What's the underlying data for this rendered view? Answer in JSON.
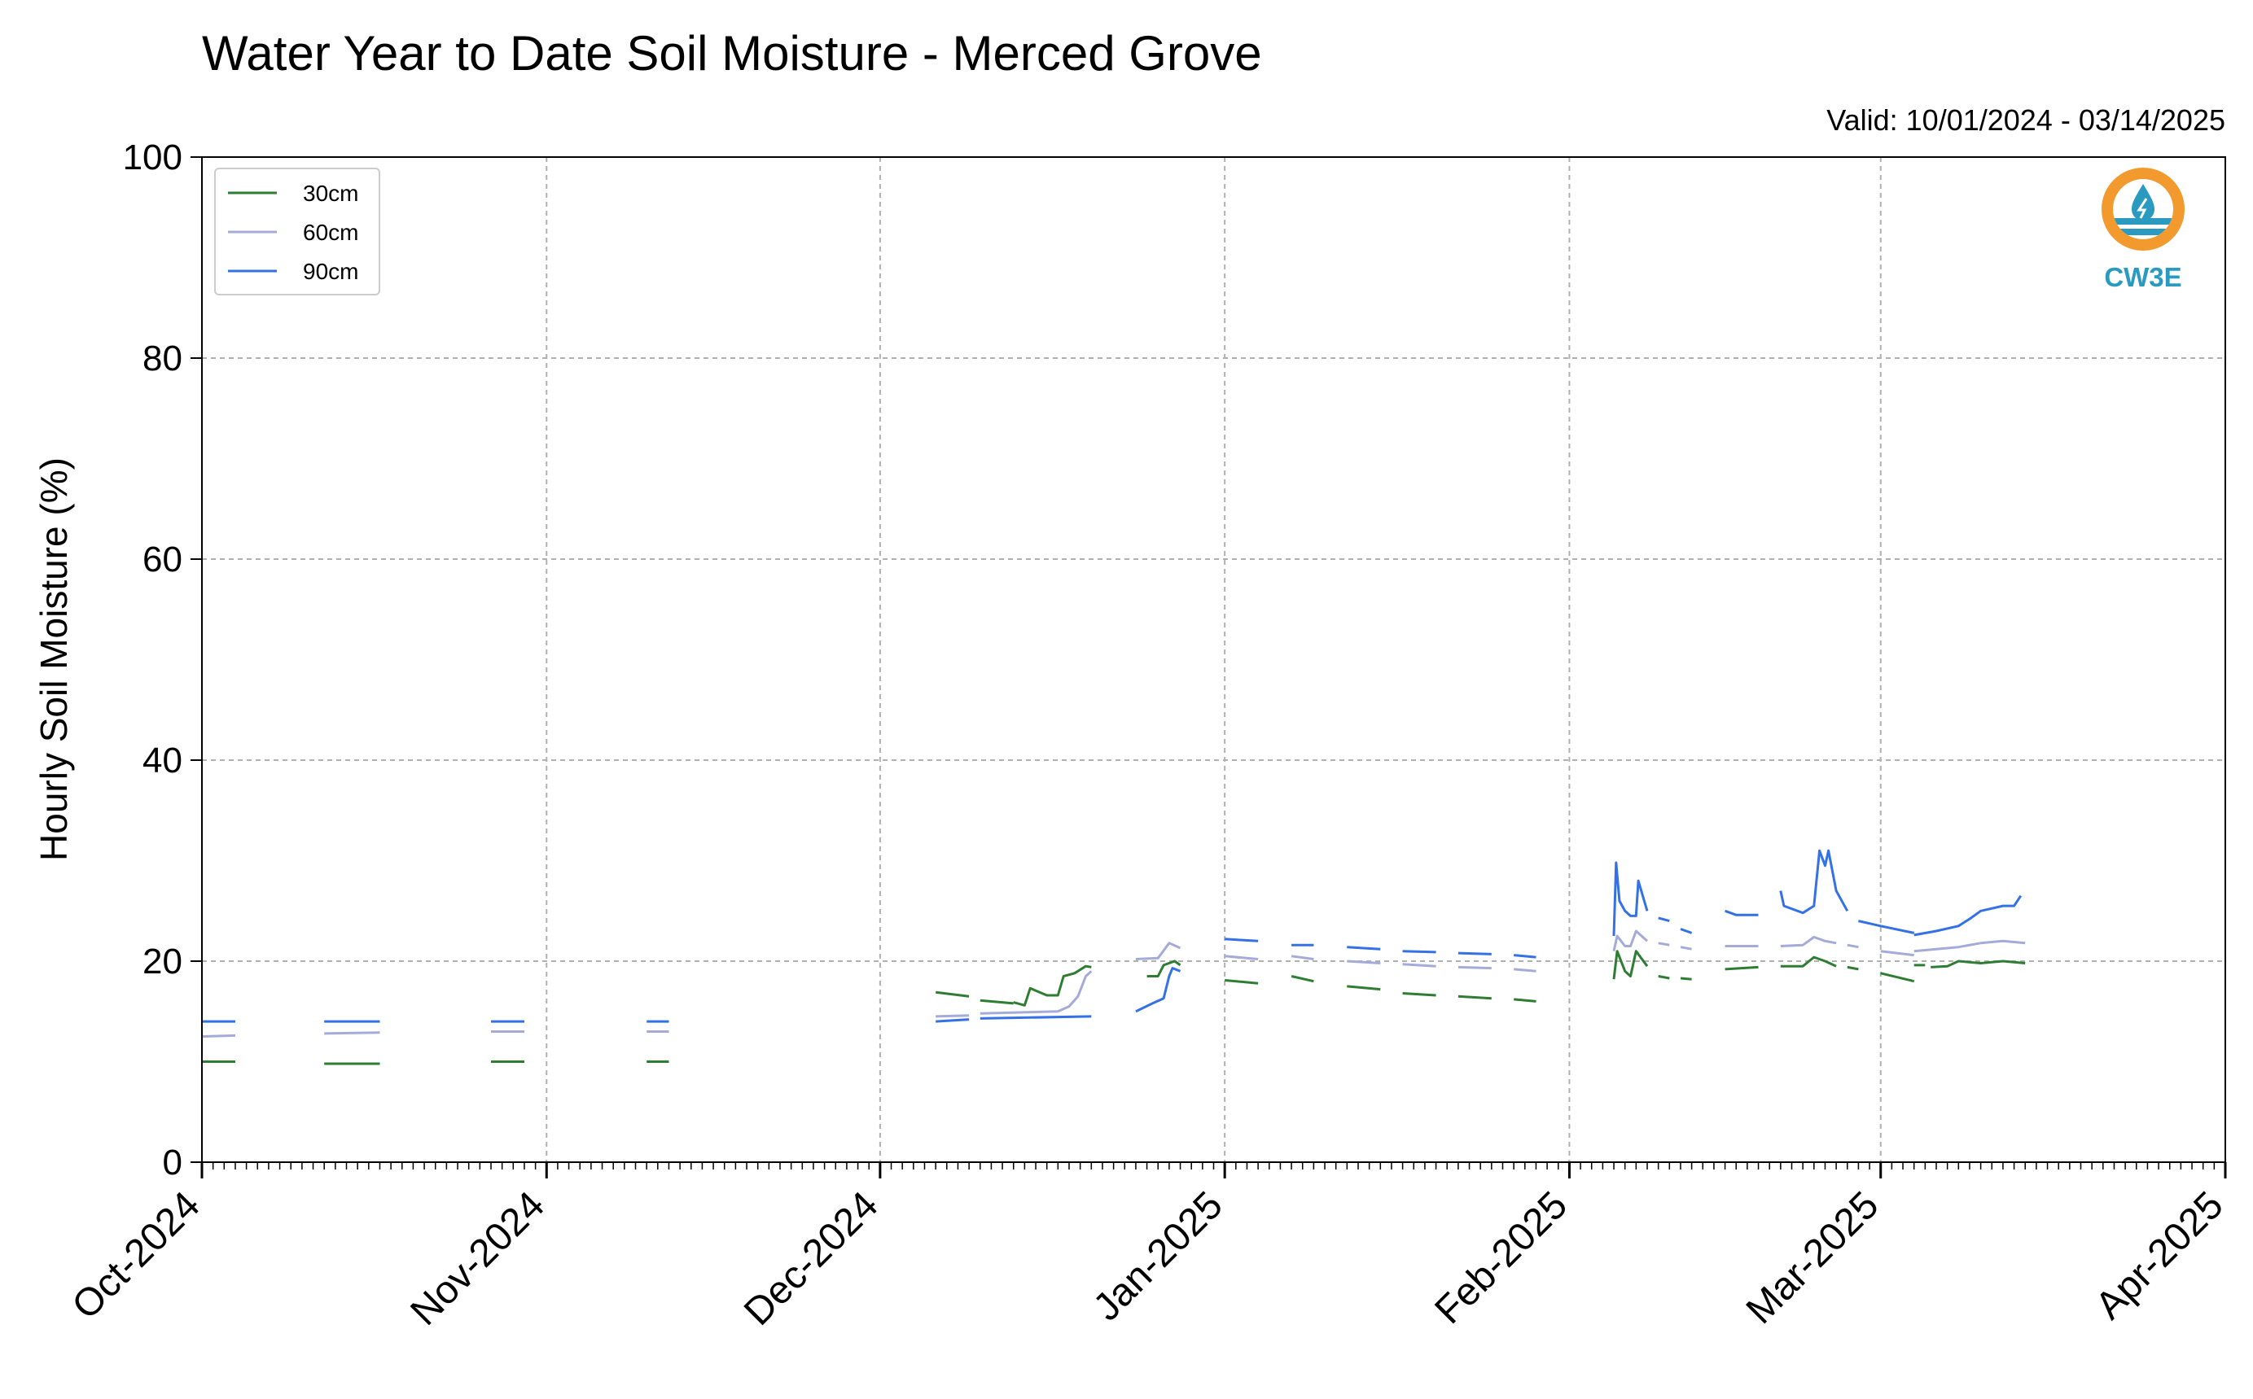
{
  "chart_data": {
    "type": "line",
    "title": "Water Year to Date Soil Moisture - Merced Grove",
    "subtitle": "Valid: 10/01/2024 - 03/14/2025",
    "xlabel": "",
    "ylabel": "Hourly Soil Moisture (%)",
    "ylim": [
      0,
      100
    ],
    "yticks": [
      0,
      20,
      40,
      60,
      80,
      100
    ],
    "xlim": [
      "2024-10-01",
      "2025-04-01"
    ],
    "xticks": [
      {
        "date": "2024-10-01",
        "label": "Oct-2024"
      },
      {
        "date": "2024-11-01",
        "label": "Nov-2024"
      },
      {
        "date": "2024-12-01",
        "label": "Dec-2024"
      },
      {
        "date": "2025-01-01",
        "label": "Jan-2025"
      },
      {
        "date": "2025-02-01",
        "label": "Feb-2025"
      },
      {
        "date": "2025-03-01",
        "label": "Mar-2025"
      },
      {
        "date": "2025-04-01",
        "label": "Apr-2025"
      }
    ],
    "grid": true,
    "legend_position": "top-left",
    "series": [
      {
        "name": "30cm",
        "color": "#2e7d32",
        "segments": [
          [
            [
              "2024-10-01",
              10.0
            ],
            [
              "2024-10-04",
              10.0
            ]
          ],
          [
            [
              "2024-10-12",
              9.8
            ],
            [
              "2024-10-17",
              9.8
            ]
          ],
          [
            [
              "2024-10-27",
              10.0
            ],
            [
              "2024-10-30",
              10.0
            ]
          ],
          [
            [
              "2024-11-10",
              10.0
            ],
            [
              "2024-11-12",
              10.0
            ]
          ],
          [
            [
              "2024-12-06",
              16.9
            ],
            [
              "2024-12-09",
              16.5
            ]
          ],
          [
            [
              "2024-12-10",
              16.1
            ],
            [
              "2024-12-13",
              15.8
            ]
          ],
          [
            [
              "2024-12-13",
              15.9
            ],
            [
              "2024-12-14",
              15.6
            ],
            [
              "2024-12-14.5",
              17.3
            ],
            [
              "2024-12-16",
              16.6
            ],
            [
              "2024-12-17",
              16.6
            ],
            [
              "2024-12-17.5",
              18.5
            ],
            [
              "2024-12-18.5",
              18.8
            ],
            [
              "2024-12-19.5",
              19.5
            ],
            [
              "2024-12-20",
              19.4
            ]
          ],
          [
            [
              "2024-12-25",
              18.5
            ],
            [
              "2024-12-26",
              18.5
            ],
            [
              "2024-12-26.5",
              19.6
            ],
            [
              "2024-12-27.5",
              20.0
            ],
            [
              "2024-12-28",
              19.6
            ]
          ],
          [
            [
              "2025-01-01",
              18.1
            ],
            [
              "2025-01-04",
              17.8
            ]
          ],
          [
            [
              "2025-01-07",
              18.5
            ],
            [
              "2025-01-09",
              18.0
            ]
          ],
          [
            [
              "2025-01-12",
              17.5
            ],
            [
              "2025-01-15",
              17.2
            ]
          ],
          [
            [
              "2025-01-17",
              16.8
            ],
            [
              "2025-01-20",
              16.6
            ]
          ],
          [
            [
              "2025-01-22",
              16.5
            ],
            [
              "2025-01-25",
              16.3
            ]
          ],
          [
            [
              "2025-01-27",
              16.2
            ],
            [
              "2025-01-29",
              16.0
            ]
          ],
          [
            [
              "2025-02-05",
              18.2
            ],
            [
              "2025-02-05.3",
              21.0
            ],
            [
              "2025-02-06",
              19.0
            ],
            [
              "2025-02-06.5",
              18.5
            ],
            [
              "2025-02-07",
              21.0
            ],
            [
              "2025-02-08",
              19.5
            ]
          ],
          [
            [
              "2025-02-09",
              18.5
            ],
            [
              "2025-02-10",
              18.3
            ]
          ],
          [
            [
              "2025-02-11",
              18.3
            ],
            [
              "2025-02-12",
              18.2
            ]
          ],
          [
            [
              "2025-02-15",
              19.2
            ],
            [
              "2025-02-18",
              19.4
            ]
          ],
          [
            [
              "2025-02-20",
              19.5
            ],
            [
              "2025-02-22",
              19.5
            ],
            [
              "2025-02-23",
              20.4
            ],
            [
              "2025-02-24",
              20.0
            ],
            [
              "2025-02-25",
              19.5
            ]
          ],
          [
            [
              "2025-02-26",
              19.4
            ],
            [
              "2025-02-27",
              19.2
            ]
          ],
          [
            [
              "2025-03-01",
              18.8
            ],
            [
              "2025-03-04",
              18.0
            ]
          ],
          [
            [
              "2025-03-04",
              19.6
            ],
            [
              "2025-03-05",
              19.6
            ]
          ],
          [
            [
              "2025-03-05.5",
              19.4
            ],
            [
              "2025-03-07",
              19.5
            ],
            [
              "2025-03-08",
              20.0
            ],
            [
              "2025-03-10",
              19.8
            ],
            [
              "2025-03-12",
              20.0
            ],
            [
              "2025-03-14",
              19.8
            ]
          ]
        ]
      },
      {
        "name": "60cm",
        "color": "#a5abd9",
        "segments": [
          [
            [
              "2024-10-01",
              12.5
            ],
            [
              "2024-10-04",
              12.6
            ]
          ],
          [
            [
              "2024-10-12",
              12.8
            ],
            [
              "2024-10-17",
              12.9
            ]
          ],
          [
            [
              "2024-10-27",
              13.0
            ],
            [
              "2024-10-30",
              13.0
            ]
          ],
          [
            [
              "2024-11-10",
              13.0
            ],
            [
              "2024-11-12",
              13.0
            ]
          ],
          [
            [
              "2024-12-06",
              14.5
            ],
            [
              "2024-12-09",
              14.6
            ]
          ],
          [
            [
              "2024-12-10",
              14.8
            ],
            [
              "2024-12-17",
              15.0
            ],
            [
              "2024-12-18",
              15.5
            ],
            [
              "2024-12-18.8",
              16.5
            ],
            [
              "2024-12-19.5",
              18.5
            ],
            [
              "2024-12-20",
              19.0
            ]
          ],
          [
            [
              "2024-12-24",
              20.2
            ],
            [
              "2024-12-26",
              20.3
            ],
            [
              "2024-12-27",
              21.8
            ],
            [
              "2024-12-28",
              21.3
            ]
          ],
          [
            [
              "2025-01-01",
              20.5
            ],
            [
              "2025-01-04",
              20.2
            ]
          ],
          [
            [
              "2025-01-07",
              20.5
            ],
            [
              "2025-01-09",
              20.2
            ]
          ],
          [
            [
              "2025-01-12",
              20.0
            ],
            [
              "2025-01-15",
              19.8
            ]
          ],
          [
            [
              "2025-01-17",
              19.7
            ],
            [
              "2025-01-20",
              19.5
            ]
          ],
          [
            [
              "2025-01-22",
              19.4
            ],
            [
              "2025-01-25",
              19.3
            ]
          ],
          [
            [
              "2025-01-27",
              19.2
            ],
            [
              "2025-01-29",
              19.0
            ]
          ],
          [
            [
              "2025-02-05",
              21.0
            ],
            [
              "2025-02-05.3",
              22.5
            ],
            [
              "2025-02-06",
              21.5
            ],
            [
              "2025-02-06.5",
              21.5
            ],
            [
              "2025-02-07",
              23.0
            ],
            [
              "2025-02-08",
              22.0
            ]
          ],
          [
            [
              "2025-02-09",
              21.8
            ],
            [
              "2025-02-10",
              21.6
            ]
          ],
          [
            [
              "2025-02-11",
              21.4
            ],
            [
              "2025-02-12",
              21.2
            ]
          ],
          [
            [
              "2025-02-15",
              21.5
            ],
            [
              "2025-02-18",
              21.5
            ]
          ],
          [
            [
              "2025-02-20",
              21.5
            ],
            [
              "2025-02-22",
              21.6
            ],
            [
              "2025-02-23",
              22.4
            ],
            [
              "2025-02-24",
              22.0
            ],
            [
              "2025-02-25",
              21.8
            ]
          ],
          [
            [
              "2025-02-26",
              21.6
            ],
            [
              "2025-02-27",
              21.4
            ]
          ],
          [
            [
              "2025-03-01",
              21.0
            ],
            [
              "2025-03-04",
              20.6
            ]
          ],
          [
            [
              "2025-03-04",
              21.0
            ],
            [
              "2025-03-06",
              21.2
            ],
            [
              "2025-03-08",
              21.4
            ],
            [
              "2025-03-10",
              21.8
            ],
            [
              "2025-03-12",
              22.0
            ],
            [
              "2025-03-14",
              21.8
            ]
          ]
        ]
      },
      {
        "name": "90cm",
        "color": "#3470e6",
        "segments": [
          [
            [
              "2024-10-01",
              14.0
            ],
            [
              "2024-10-04",
              14.0
            ]
          ],
          [
            [
              "2024-10-12",
              14.0
            ],
            [
              "2024-10-17",
              14.0
            ]
          ],
          [
            [
              "2024-10-27",
              14.0
            ],
            [
              "2024-10-30",
              14.0
            ]
          ],
          [
            [
              "2024-11-10",
              14.0
            ],
            [
              "2024-11-12",
              14.0
            ]
          ],
          [
            [
              "2024-12-06",
              14.0
            ],
            [
              "2024-12-09",
              14.2
            ]
          ],
          [
            [
              "2024-12-10",
              14.3
            ],
            [
              "2024-12-20",
              14.5
            ]
          ],
          [
            [
              "2024-12-24",
              15.0
            ],
            [
              "2024-12-25.5",
              15.8
            ],
            [
              "2024-12-26.5",
              16.3
            ],
            [
              "2024-12-27",
              18.5
            ],
            [
              "2024-12-27.3",
              19.3
            ],
            [
              "2024-12-28",
              19.0
            ]
          ],
          [
            [
              "2025-01-01",
              22.2
            ],
            [
              "2025-01-04",
              22.0
            ]
          ],
          [
            [
              "2025-01-07",
              21.6
            ],
            [
              "2025-01-09",
              21.6
            ]
          ],
          [
            [
              "2025-01-12",
              21.4
            ],
            [
              "2025-01-15",
              21.2
            ]
          ],
          [
            [
              "2025-01-17",
              21.0
            ],
            [
              "2025-01-20",
              20.9
            ]
          ],
          [
            [
              "2025-01-22",
              20.8
            ],
            [
              "2025-01-25",
              20.7
            ]
          ],
          [
            [
              "2025-01-27",
              20.6
            ],
            [
              "2025-01-29",
              20.4
            ]
          ],
          [
            [
              "2025-02-05",
              22.5
            ],
            [
              "2025-02-05.2",
              29.8
            ],
            [
              "2025-02-05.5",
              26.0
            ],
            [
              "2025-02-06",
              25.0
            ],
            [
              "2025-02-06.5",
              24.5
            ],
            [
              "2025-02-07",
              24.5
            ],
            [
              "2025-02-07.2",
              28.0
            ],
            [
              "2025-02-07.6",
              26.5
            ],
            [
              "2025-02-08",
              25.0
            ]
          ],
          [
            [
              "2025-02-09",
              24.3
            ],
            [
              "2025-02-10",
              24.0
            ]
          ],
          [
            [
              "2025-02-11",
              23.2
            ],
            [
              "2025-02-12",
              22.8
            ]
          ],
          [
            [
              "2025-02-15",
              25.0
            ],
            [
              "2025-02-16",
              24.6
            ],
            [
              "2025-02-18",
              24.6
            ]
          ],
          [
            [
              "2025-02-20",
              27.0
            ],
            [
              "2025-02-20.3",
              25.5
            ],
            [
              "2025-02-22",
              24.8
            ],
            [
              "2025-02-23",
              25.5
            ],
            [
              "2025-02-23.5",
              31.0
            ],
            [
              "2025-02-24",
              29.5
            ],
            [
              "2025-02-24.3",
              31.0
            ],
            [
              "2025-02-25",
              27.0
            ],
            [
              "2025-02-26",
              25.0
            ]
          ],
          [
            [
              "2025-02-27",
              24.0
            ],
            [
              "2025-03-01",
              23.5
            ],
            [
              "2025-03-04",
              22.8
            ]
          ],
          [
            [
              "2025-03-04",
              22.6
            ],
            [
              "2025-03-06",
              23.0
            ],
            [
              "2025-03-08",
              23.5
            ],
            [
              "2025-03-09",
              24.2
            ],
            [
              "2025-03-10",
              25.0
            ],
            [
              "2025-03-12",
              25.5
            ],
            [
              "2025-03-13",
              25.5
            ],
            [
              "2025-03-13.6",
              26.5
            ]
          ]
        ]
      }
    ]
  },
  "logo": {
    "text": "CW3E",
    "icon": "cw3e-logo-icon",
    "ring_color": "#f29a2e",
    "wave_color": "#2a9ac0",
    "text_color": "#2a9ac0"
  }
}
